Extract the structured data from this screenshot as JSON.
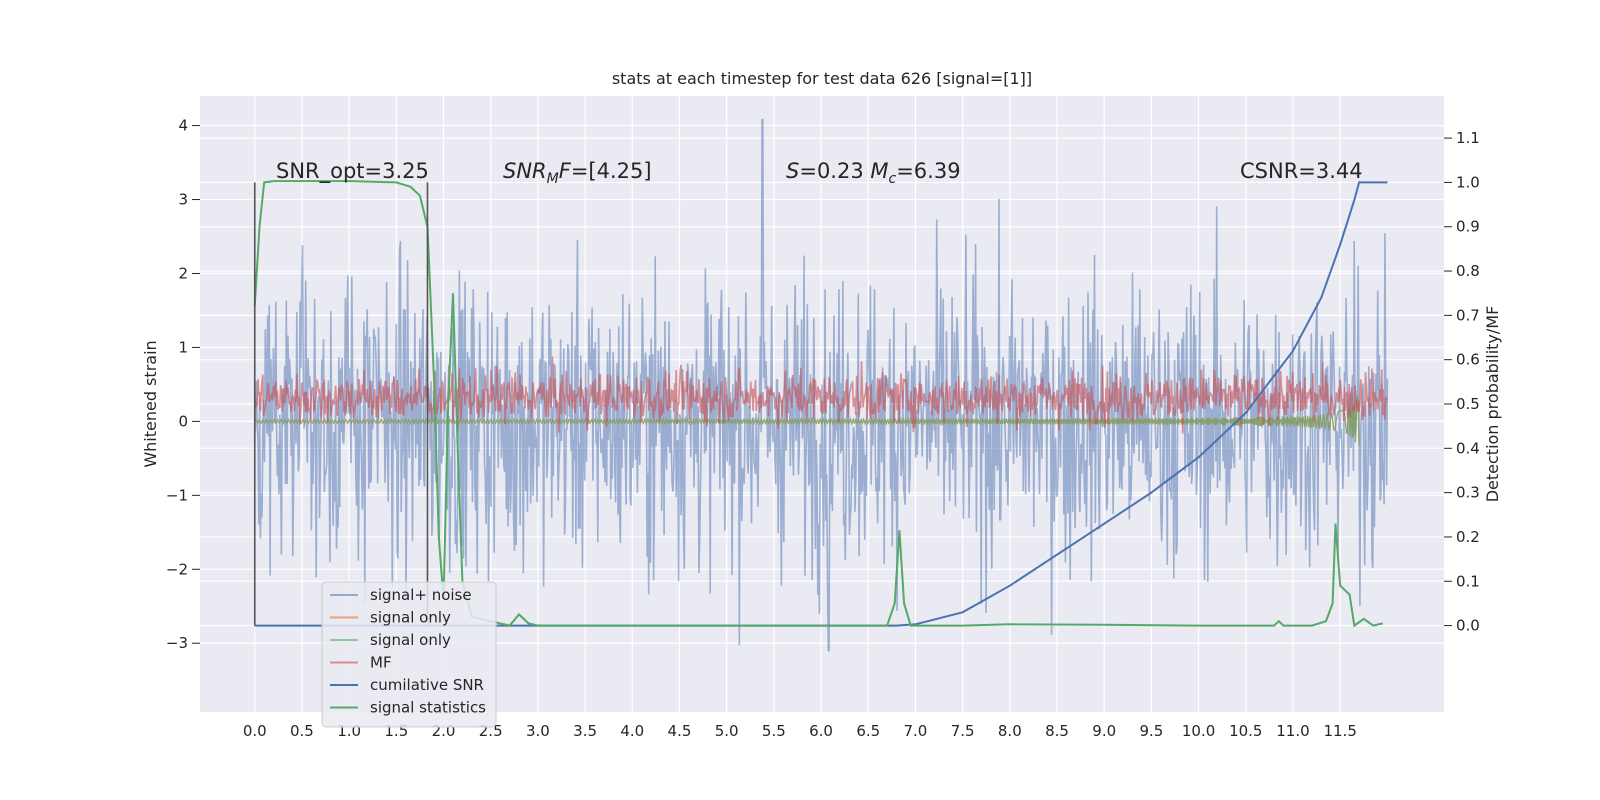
{
  "chart_data": {
    "type": "line",
    "title": "stats at each timestep for test data 626 [signal=[1]]",
    "xlabel": "",
    "ylabel": "Whitened strain",
    "y2label": "Detection probability/MF",
    "xlim": [
      -0.58,
      12.6
    ],
    "ylim": [
      -3.93,
      4.4
    ],
    "y2lim": [
      -0.195,
      1.195
    ],
    "x_ticks": [
      "0.0",
      "0.5",
      "1.0",
      "1.5",
      "2.0",
      "2.5",
      "3.0",
      "3.5",
      "4.0",
      "4.5",
      "5.0",
      "5.5",
      "6.0",
      "6.5",
      "7.0",
      "7.5",
      "8.0",
      "8.5",
      "9.0",
      "9.5",
      "10.0",
      "10.5",
      "11.0",
      "11.5"
    ],
    "y_ticks": [
      "−3",
      "−2",
      "−1",
      "0",
      "1",
      "2",
      "3",
      "4"
    ],
    "y2_ticks": [
      "0.0",
      "0.1",
      "0.2",
      "0.3",
      "0.4",
      "0.5",
      "0.6",
      "0.7",
      "0.8",
      "0.9",
      "1.0",
      "1.1"
    ],
    "grid": true,
    "legend_placement": "lower-left",
    "annotations": [
      {
        "parts": [
          {
            "t": "SNR_opt=3.25"
          }
        ]
      },
      {
        "parts": [
          {
            "t": "SNR",
            "i": true
          },
          {
            "t": "M",
            "i": true,
            "sub": true
          },
          {
            "t": "F",
            "i": true
          },
          {
            "t": "=[4.25]"
          }
        ]
      },
      {
        "parts": [
          {
            "t": "S",
            "i": true
          },
          {
            "t": "=0.23   "
          },
          {
            "t": "M",
            "i": true
          },
          {
            "t": "c",
            "i": true,
            "sub": true
          },
          {
            "t": "=6.39"
          }
        ]
      },
      {
        "parts": [
          {
            "t": "CSNR=3.44"
          }
        ]
      }
    ],
    "vlines": [
      0.0,
      1.83
    ],
    "series": [
      {
        "name": "signal+ noise",
        "color": "#4c72b0",
        "alpha": 0.5,
        "axis": "left",
        "kind": "noise",
        "x_range": [
          0.0,
          12.0
        ],
        "band": [
          -1.5,
          1.5
        ],
        "max": 4.08,
        "min": -3.1
      },
      {
        "name": "signal only",
        "color": "#dd8452",
        "alpha": 0.7,
        "axis": "left",
        "kind": "chirp",
        "x_range": [
          0.0,
          11.7
        ]
      },
      {
        "name": "signal only",
        "color": "#55a868",
        "alpha": 0.6,
        "axis": "left",
        "kind": "chirp",
        "x_range": [
          0.0,
          11.7
        ]
      },
      {
        "name": "MF",
        "color": "#c44e52",
        "alpha": 0.6,
        "axis": "right",
        "kind": "noise",
        "x_range": [
          0.0,
          12.0
        ],
        "band": [
          0.47,
          0.56
        ]
      },
      {
        "name": "cumilative SNR",
        "color": "#4c72b0",
        "alpha": 1.0,
        "axis": "right",
        "x": [
          0.0,
          6.8,
          7.0,
          7.5,
          8.0,
          8.5,
          9.0,
          9.5,
          10.0,
          10.5,
          11.0,
          11.3,
          11.5,
          11.65,
          11.7,
          12.0
        ],
        "y": [
          0.0,
          0.0,
          0.003,
          0.03,
          0.09,
          0.16,
          0.23,
          0.3,
          0.38,
          0.48,
          0.62,
          0.74,
          0.86,
          0.96,
          1.0,
          1.0
        ]
      },
      {
        "name": "signal statistics",
        "color": "#55a868",
        "alpha": 1.0,
        "axis": "right",
        "x": [
          0.0,
          0.05,
          0.1,
          0.2,
          0.4,
          1.0,
          1.5,
          1.65,
          1.75,
          1.83,
          1.9,
          1.95,
          2.0,
          2.05,
          2.1,
          2.15,
          2.2,
          2.3,
          2.5,
          2.7,
          2.8,
          2.9,
          3.0,
          4.0,
          5.0,
          6.0,
          6.7,
          6.78,
          6.83,
          6.88,
          6.95,
          7.5,
          8.0,
          9.0,
          10.0,
          10.8,
          10.85,
          10.9,
          11.2,
          11.35,
          11.42,
          11.45,
          11.5,
          11.6,
          11.65,
          11.75,
          11.85,
          11.95
        ],
        "y": [
          0.72,
          0.9,
          1.0,
          1.003,
          1.003,
          1.003,
          1.0,
          0.99,
          0.97,
          0.9,
          0.55,
          0.2,
          0.06,
          0.5,
          0.75,
          0.4,
          0.1,
          0.02,
          0.01,
          0.0,
          0.025,
          0.005,
          0.0,
          0.0,
          0.0,
          0.0,
          0.0,
          0.05,
          0.215,
          0.05,
          0.0,
          0.0,
          0.003,
          0.002,
          0.0,
          0.0,
          0.01,
          0.0,
          0.0,
          0.01,
          0.05,
          0.23,
          0.09,
          0.07,
          0.0,
          0.015,
          0.0,
          0.005
        ]
      }
    ]
  }
}
